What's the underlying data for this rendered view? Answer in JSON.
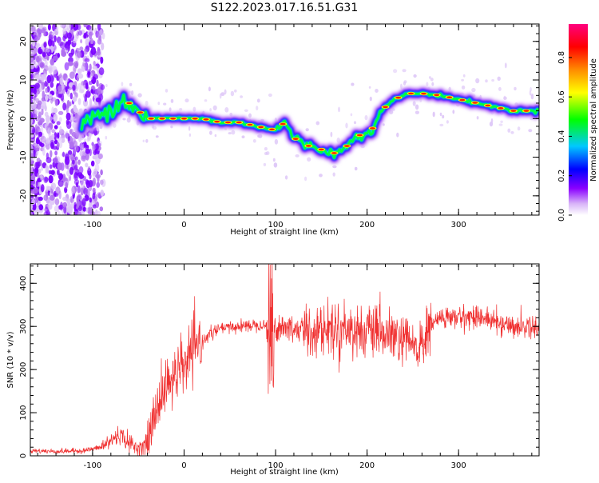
{
  "figure_title": "S122.2023.017.16.51.G31",
  "chart_data": [
    {
      "type": "heatmap",
      "title": "S122.2023.017.16.51.G31",
      "xlabel": "Height of straight line (km)",
      "ylabel": "Frequency (Hz)",
      "xlim": [
        -168,
        388
      ],
      "ylim": [
        -25,
        24.5
      ],
      "x_ticks": [
        -100,
        0,
        100,
        200,
        300
      ],
      "y_ticks": [
        -20,
        -10,
        0,
        10,
        20
      ],
      "grid": false,
      "colorbar": {
        "label": "Normalized spectral amplitude",
        "range": [
          0,
          0.97
        ],
        "ticks": [
          0.0,
          0.2,
          0.4,
          0.6,
          0.8
        ],
        "colormap": [
          "#ffffff",
          "#d8b3f8",
          "#8a00ff",
          "#0000ff",
          "#00c8ff",
          "#00ff00",
          "#ffff00",
          "#ff8c00",
          "#ff0000",
          "#ff007f"
        ]
      },
      "ridge": {
        "x": [
          -115,
          -100,
          -80,
          -65,
          -55,
          -40,
          -20,
          0,
          20,
          40,
          60,
          80,
          100,
          110,
          120,
          135,
          150,
          165,
          175,
          185,
          195,
          205,
          215,
          230,
          245,
          260,
          280,
          300,
          320,
          340,
          360,
          388
        ],
        "y": [
          -2,
          0,
          3,
          5,
          3,
          0,
          0,
          0,
          0,
          -1,
          -1,
          -2,
          -3,
          -1,
          -5,
          -7,
          -8,
          -9,
          -8,
          -5,
          -4,
          -3,
          2,
          5,
          6.5,
          6.5,
          6,
          5,
          4,
          3,
          2,
          2
        ]
      }
    },
    {
      "type": "line",
      "xlabel": "Height of straight line (km)",
      "ylabel": "SNR (10 * v/v)",
      "xlim": [
        -168,
        388
      ],
      "ylim": [
        0,
        445
      ],
      "x_ticks": [
        -100,
        0,
        100,
        200,
        300
      ],
      "y_ticks": [
        0,
        100,
        200,
        300,
        400
      ],
      "grid": false,
      "color": "#f03030",
      "series": [
        {
          "x": [
            -168,
            -140,
            -110,
            -90,
            -80,
            -70,
            -60,
            -50,
            -40,
            -30,
            -20,
            -10,
            0,
            10,
            20,
            30,
            40,
            60,
            80,
            100,
            120,
            140,
            160,
            180,
            200,
            220,
            240,
            260,
            270,
            280,
            300,
            320,
            340,
            360,
            388
          ],
          "y": [
            12,
            10,
            12,
            20,
            35,
            50,
            30,
            15,
            30,
            110,
            160,
            180,
            210,
            240,
            265,
            285,
            295,
            300,
            305,
            300,
            295,
            290,
            295,
            295,
            285,
            280,
            265,
            250,
            305,
            320,
            320,
            325,
            310,
            300,
            300
          ]
        }
      ],
      "annotations": [
        {
          "x": 95,
          "y": 440,
          "text": ""
        }
      ]
    }
  ]
}
